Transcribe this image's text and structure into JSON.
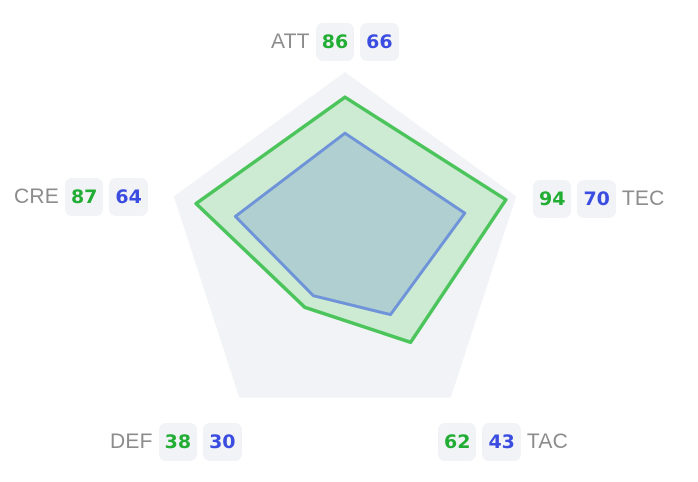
{
  "chart_data": {
    "type": "radar",
    "title": "",
    "max": 100,
    "axes": [
      "ATT",
      "TEC",
      "TAC",
      "DEF",
      "CRE"
    ],
    "series": [
      {
        "values": [
          86,
          94,
          62,
          38,
          87
        ]
      },
      {
        "values": [
          66,
          70,
          43,
          30,
          64
        ]
      }
    ]
  },
  "colors": {
    "background_polygon": "#f2f3f7",
    "series_a_stroke": "#4cc45c",
    "series_a_fill": "#cdebd2",
    "series_b_stroke": "#6e93d8",
    "series_b_fill": "#afcfd1",
    "label_gray": "#8c8c8c",
    "badge_bg": "#f2f3f7",
    "badge_a_text": "#22ad34",
    "badge_b_text": "#3b4de0"
  }
}
